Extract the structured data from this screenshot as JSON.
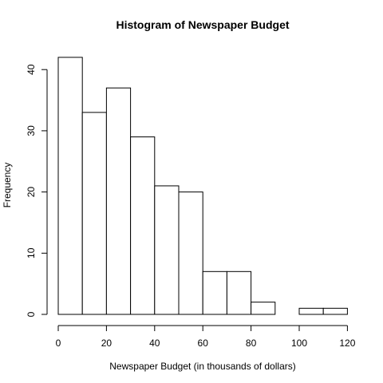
{
  "chart_data": {
    "type": "bar",
    "title": "Histogram of Newspaper Budget",
    "xlabel": "Newspaper Budget (in thousands of dollars)",
    "ylabel": "Frequency",
    "bins": [
      {
        "from": 0,
        "to": 10,
        "count": 42
      },
      {
        "from": 10,
        "to": 20,
        "count": 33
      },
      {
        "from": 20,
        "to": 30,
        "count": 37
      },
      {
        "from": 30,
        "to": 40,
        "count": 29
      },
      {
        "from": 40,
        "to": 50,
        "count": 21
      },
      {
        "from": 50,
        "to": 60,
        "count": 20
      },
      {
        "from": 60,
        "to": 70,
        "count": 7
      },
      {
        "from": 70,
        "to": 80,
        "count": 7
      },
      {
        "from": 80,
        "to": 90,
        "count": 2
      },
      {
        "from": 90,
        "to": 100,
        "count": 0
      },
      {
        "from": 100,
        "to": 110,
        "count": 1
      },
      {
        "from": 110,
        "to": 120,
        "count": 1
      }
    ],
    "xlim": [
      0,
      120
    ],
    "ylim": [
      0,
      42
    ],
    "x_ticks": [
      "0",
      "20",
      "40",
      "60",
      "80",
      "100",
      "120"
    ],
    "y_ticks": [
      "0",
      "10",
      "20",
      "30",
      "40"
    ],
    "grid": false,
    "bar_fill": "#ffffff",
    "bar_stroke": "#000000"
  }
}
